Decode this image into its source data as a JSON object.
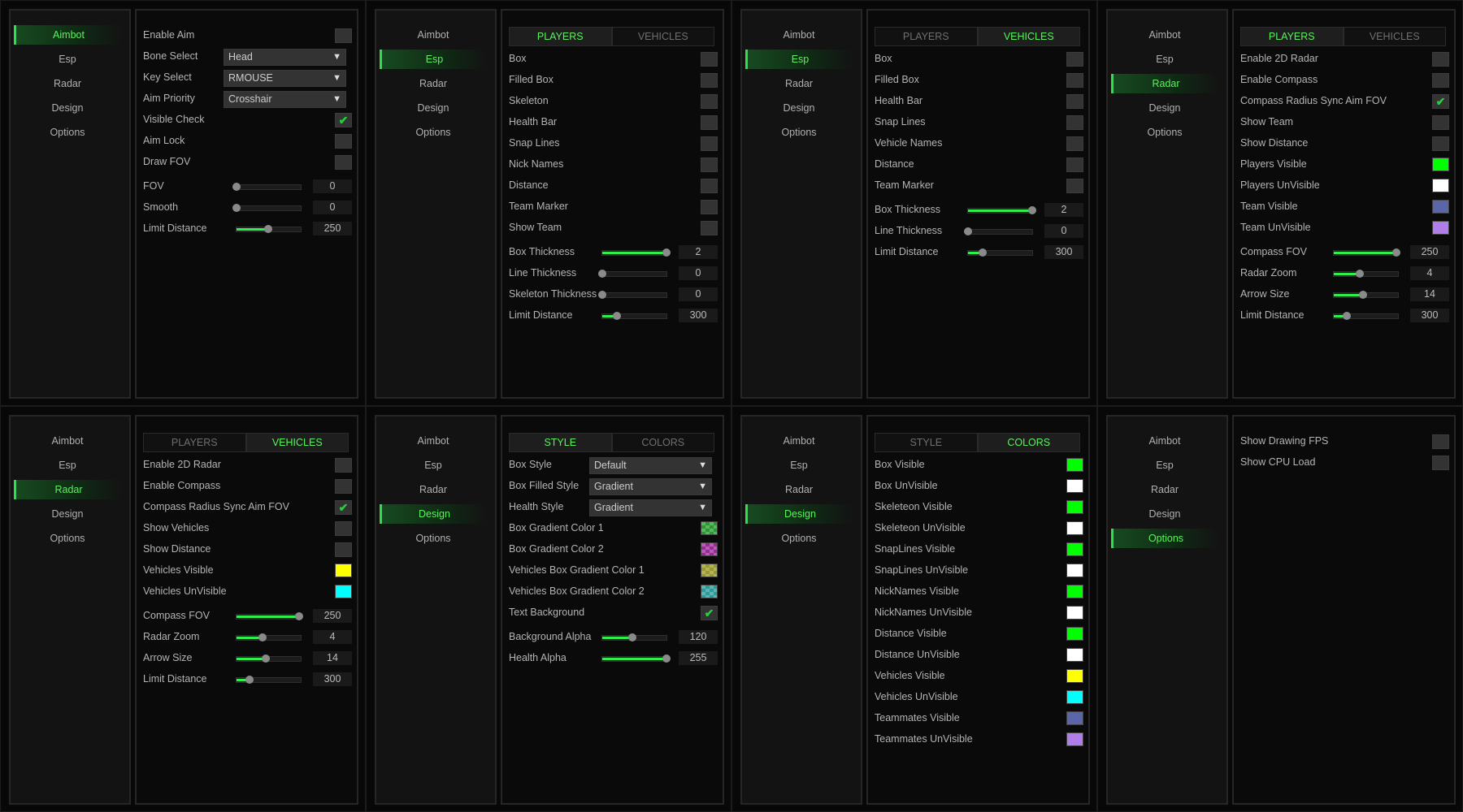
{
  "nav": [
    "Aimbot",
    "Esp",
    "Radar",
    "Design",
    "Options"
  ],
  "colors": {
    "accent": "#2fe04a",
    "checkbox": "#333333"
  },
  "panels": [
    {
      "active_nav": 0,
      "tabs": null,
      "rows": [
        {
          "type": "checkbox",
          "label": "Enable Aim",
          "checked": false
        },
        {
          "type": "combo",
          "label": "Bone Select",
          "value": "Head"
        },
        {
          "type": "combo",
          "label": "Key Select",
          "value": "RMOUSE"
        },
        {
          "type": "combo",
          "label": "Aim Priority",
          "value": "Crosshair"
        },
        {
          "type": "checkbox",
          "label": "Visible Check",
          "checked": true
        },
        {
          "type": "checkbox",
          "label": "Aim Lock",
          "checked": false
        },
        {
          "type": "checkbox",
          "label": "Draw FOV",
          "checked": false
        },
        {
          "type": "slider",
          "label": "FOV",
          "value": "0",
          "level": 0
        },
        {
          "type": "slider",
          "label": "Smooth",
          "value": "0",
          "level": 0
        },
        {
          "type": "slider",
          "label": "Limit Distance",
          "value": "250",
          "level": 0.49
        }
      ]
    },
    {
      "active_nav": 1,
      "tabs": {
        "items": [
          "PLAYERS",
          "VEHICLES"
        ],
        "active": 0
      },
      "rows": [
        {
          "type": "checkbox",
          "label": "Box",
          "checked": false
        },
        {
          "type": "checkbox",
          "label": "Filled Box",
          "checked": false
        },
        {
          "type": "checkbox",
          "label": "Skeleton",
          "checked": false
        },
        {
          "type": "checkbox",
          "label": "Health Bar",
          "checked": false
        },
        {
          "type": "checkbox",
          "label": "Snap Lines",
          "checked": false
        },
        {
          "type": "checkbox",
          "label": "Nick Names",
          "checked": false
        },
        {
          "type": "checkbox",
          "label": "Distance",
          "checked": false
        },
        {
          "type": "checkbox",
          "label": "Team Marker",
          "checked": false
        },
        {
          "type": "checkbox",
          "label": "Show Team",
          "checked": false
        },
        {
          "type": "slider",
          "label": "Box Thickness",
          "value": "2",
          "level": 1
        },
        {
          "type": "slider",
          "label": "Line Thickness",
          "value": "0",
          "level": 0
        },
        {
          "type": "slider",
          "label": "Skeleton Thickness",
          "value": "0",
          "level": 0
        },
        {
          "type": "slider",
          "label": "Limit Distance",
          "value": "300",
          "level": 0.23
        }
      ]
    },
    {
      "active_nav": 1,
      "tabs": {
        "items": [
          "PLAYERS",
          "VEHICLES"
        ],
        "active": 1
      },
      "rows": [
        {
          "type": "checkbox",
          "label": "Box",
          "checked": false
        },
        {
          "type": "checkbox",
          "label": "Filled Box",
          "checked": false
        },
        {
          "type": "checkbox",
          "label": "Health Bar",
          "checked": false
        },
        {
          "type": "checkbox",
          "label": "Snap Lines",
          "checked": false
        },
        {
          "type": "checkbox",
          "label": "Vehicle Names",
          "checked": false
        },
        {
          "type": "checkbox",
          "label": "Distance",
          "checked": false
        },
        {
          "type": "checkbox",
          "label": "Team Marker",
          "checked": false
        },
        {
          "type": "slider",
          "label": "Box Thickness",
          "value": "2",
          "level": 1
        },
        {
          "type": "slider",
          "label": "Line Thickness",
          "value": "0",
          "level": 0
        },
        {
          "type": "slider",
          "label": "Limit Distance",
          "value": "300",
          "level": 0.23
        }
      ]
    },
    {
      "active_nav": 2,
      "tabs": {
        "items": [
          "PLAYERS",
          "VEHICLES"
        ],
        "active": 0
      },
      "rows": [
        {
          "type": "checkbox",
          "label": "Enable 2D Radar",
          "checked": false
        },
        {
          "type": "checkbox",
          "label": "Enable Compass",
          "checked": false
        },
        {
          "type": "checkbox",
          "label": "Compass Radius Sync Aim FOV",
          "checked": true
        },
        {
          "type": "checkbox",
          "label": "Show Team",
          "checked": false
        },
        {
          "type": "checkbox",
          "label": "Show Distance",
          "checked": false
        },
        {
          "type": "color",
          "label": "Players Visible",
          "color": "#00ff00"
        },
        {
          "type": "color",
          "label": "Players UnVisible",
          "color": "#ffffff"
        },
        {
          "type": "color",
          "label": "Team Visible",
          "color": "#5a66a8"
        },
        {
          "type": "color",
          "label": "Team UnVisible",
          "color": "#b07ee8"
        },
        {
          "type": "slider",
          "label": "Compass FOV",
          "value": "250",
          "level": 0.98
        },
        {
          "type": "slider",
          "label": "Radar Zoom",
          "value": "4",
          "level": 0.4
        },
        {
          "type": "slider",
          "label": "Arrow Size",
          "value": "14",
          "level": 0.45
        },
        {
          "type": "slider",
          "label": "Limit Distance",
          "value": "300",
          "level": 0.2
        }
      ]
    },
    {
      "active_nav": 2,
      "tabs": {
        "items": [
          "PLAYERS",
          "VEHICLES"
        ],
        "active": 1
      },
      "rows": [
        {
          "type": "checkbox",
          "label": "Enable 2D Radar",
          "checked": false
        },
        {
          "type": "checkbox",
          "label": "Enable Compass",
          "checked": false
        },
        {
          "type": "checkbox",
          "label": "Compass Radius Sync Aim FOV",
          "checked": true
        },
        {
          "type": "checkbox",
          "label": "Show Vehicles",
          "checked": false
        },
        {
          "type": "checkbox",
          "label": "Show Distance",
          "checked": false
        },
        {
          "type": "color",
          "label": "Vehicles Visible",
          "color": "#ffff00"
        },
        {
          "type": "color",
          "label": "Vehicles UnVisible",
          "color": "#00ffff"
        },
        {
          "type": "slider",
          "label": "Compass FOV",
          "value": "250",
          "level": 0.98
        },
        {
          "type": "slider",
          "label": "Radar Zoom",
          "value": "4",
          "level": 0.4
        },
        {
          "type": "slider",
          "label": "Arrow Size",
          "value": "14",
          "level": 0.45
        },
        {
          "type": "slider",
          "label": "Limit Distance",
          "value": "300",
          "level": 0.2
        }
      ]
    },
    {
      "active_nav": 3,
      "tabs": {
        "items": [
          "STYLE",
          "COLORS"
        ],
        "active": 0
      },
      "rows": [
        {
          "type": "combo",
          "label": "Box Style",
          "value": "Default"
        },
        {
          "type": "combo",
          "label": "Box Filled Style",
          "value": "Gradient"
        },
        {
          "type": "combo",
          "label": "Health Style",
          "value": "Gradient"
        },
        {
          "type": "color",
          "label": "Box Gradient Color 1",
          "color": "#2a9a30",
          "checker": true
        },
        {
          "type": "color",
          "label": "Box Gradient Color 2",
          "color": "#9a2a98",
          "checker": true
        },
        {
          "type": "color",
          "label": "Vehicles Box Gradient Color 1",
          "color": "#9a9a2a",
          "checker": true
        },
        {
          "type": "color",
          "label": "Vehicles Box Gradient Color 2",
          "color": "#2a9a9a",
          "checker": true
        },
        {
          "type": "checkbox",
          "label": "Text Background",
          "checked": true
        },
        {
          "type": "slider",
          "label": "Background Alpha",
          "value": "120",
          "level": 0.47
        },
        {
          "type": "slider",
          "label": "Health Alpha",
          "value": "255",
          "level": 1
        }
      ]
    },
    {
      "active_nav": 3,
      "tabs": {
        "items": [
          "STYLE",
          "COLORS"
        ],
        "active": 1
      },
      "rows": [
        {
          "type": "color",
          "label": "Box Visible",
          "color": "#00ff00"
        },
        {
          "type": "color",
          "label": "Box UnVisible",
          "color": "#ffffff"
        },
        {
          "type": "color",
          "label": "Skeleteon Visible",
          "color": "#00ff00"
        },
        {
          "type": "color",
          "label": "Skeleteon UnVisible",
          "color": "#ffffff"
        },
        {
          "type": "color",
          "label": "SnapLines Visible",
          "color": "#00ff00"
        },
        {
          "type": "color",
          "label": "SnapLines UnVisible",
          "color": "#ffffff"
        },
        {
          "type": "color",
          "label": "NickNames Visible",
          "color": "#00ff00"
        },
        {
          "type": "color",
          "label": "NickNames UnVisible",
          "color": "#ffffff"
        },
        {
          "type": "color",
          "label": "Distance Visible",
          "color": "#00ff00"
        },
        {
          "type": "color",
          "label": "Distance UnVisible",
          "color": "#ffffff"
        },
        {
          "type": "color",
          "label": "Vehicles Visible",
          "color": "#ffff00"
        },
        {
          "type": "color",
          "label": "Vehicles UnVisible",
          "color": "#00ffff"
        },
        {
          "type": "color",
          "label": "Teammates Visible",
          "color": "#5a66a8"
        },
        {
          "type": "color",
          "label": "Teammates UnVisible",
          "color": "#b07ee8"
        }
      ]
    },
    {
      "active_nav": 4,
      "tabs": null,
      "rows": [
        {
          "type": "checkbox",
          "label": "Show Drawing FPS",
          "checked": false
        },
        {
          "type": "checkbox",
          "label": "Show CPU Load",
          "checked": false
        }
      ]
    }
  ]
}
